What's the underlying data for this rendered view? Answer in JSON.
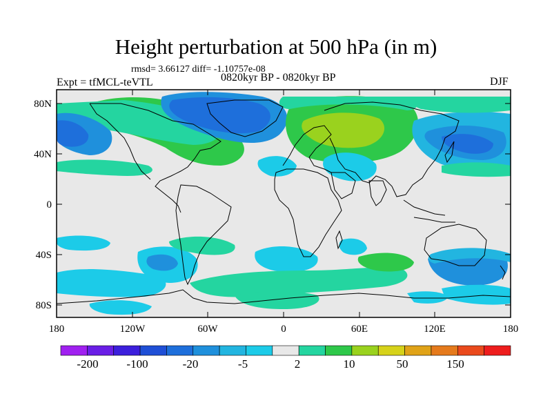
{
  "figure": {
    "title": "Height perturbation at 500 hPa (in m)",
    "stats_line": "rmsd= 3.66127 diff= -1.10757e-08",
    "experiment_label": "Expt = tfMCL-teVTL",
    "period_label": "0820kyr BP - 0820kyr BP",
    "season_label": "DJF"
  },
  "axes": {
    "lat_ticks": [
      "80N",
      "40N",
      "0",
      "40S",
      "80S"
    ],
    "lon_ticks": [
      "180",
      "120W",
      "60W",
      "0",
      "60E",
      "120E",
      "180"
    ]
  },
  "colorbar": {
    "labels": [
      "-200",
      "-100",
      "-20",
      "-5",
      "2",
      "10",
      "50",
      "150"
    ],
    "colors": [
      "#a020f0",
      "#6a1ee6",
      "#3c1fdc",
      "#1f4fd6",
      "#1e6fdb",
      "#1f90dc",
      "#22b5e0",
      "#1ccbe8",
      "#e8e8e8",
      "#24d5a0",
      "#2ec84a",
      "#9ad21e",
      "#d6d21a",
      "#e0a318",
      "#e57a1c",
      "#ea4a1c",
      "#ee1d1d"
    ]
  },
  "colors": {
    "neutral_fill": "#e8e8e8",
    "coast_line": "#000000",
    "frame_line": "#000000"
  }
}
